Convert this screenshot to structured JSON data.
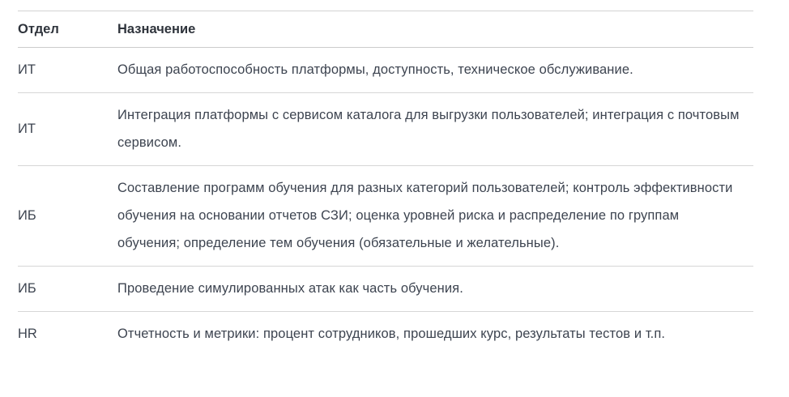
{
  "table": {
    "columns": [
      {
        "label": "Отдел"
      },
      {
        "label": "Назначение"
      }
    ],
    "rows": [
      {
        "department": "ИТ",
        "purpose": "Общая работоспособность платформы, доступность, техническое обслуживание."
      },
      {
        "department": "ИТ",
        "purpose": "Интеграция платформы с сервисом каталога для выгрузки пользователей; интеграция с почтовым сервисом."
      },
      {
        "department": "ИБ",
        "purpose": "Составление программ обучения для разных категорий пользователей; контроль эффективности обучения на основании отчетов СЗИ; оценка уровней риска и распределение по группам обучения; определение тем обучения (обязательные и желательные)."
      },
      {
        "department": "ИБ",
        "purpose": "Проведение симулированных атак как часть обучения."
      },
      {
        "department": "HR",
        "purpose": "Отчетность и метрики: процент сотрудников, прошедших курс, результаты тестов и т.п."
      }
    ]
  },
  "colors": {
    "background": "#ffffff",
    "text": "#3d4450",
    "header_text": "#2f343c",
    "border": "#d6d6d6"
  }
}
